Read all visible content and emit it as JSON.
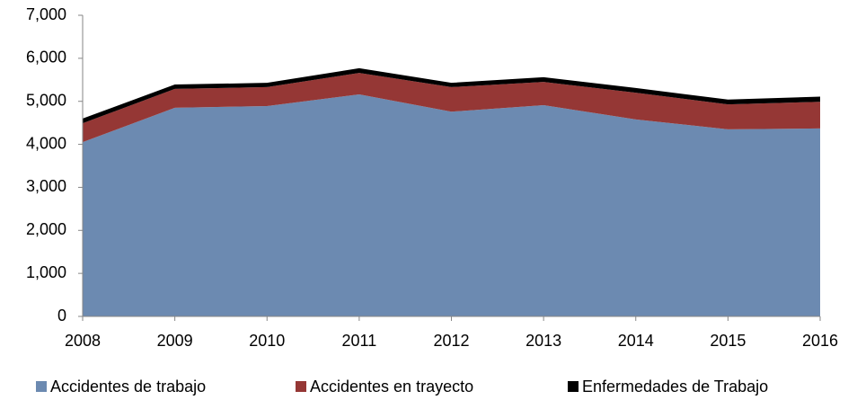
{
  "chart_data": {
    "type": "stacked_area",
    "categories": [
      "2008",
      "2009",
      "2010",
      "2011",
      "2012",
      "2013",
      "2014",
      "2015",
      "2016"
    ],
    "series": [
      {
        "name": "Accidentes de trabajo",
        "color": "#6c8ab1",
        "values": [
          4050,
          4850,
          4890,
          5160,
          4760,
          4910,
          4580,
          4350,
          4370
        ]
      },
      {
        "name": "Accidentes en trayecto",
        "color": "#953735",
        "values": [
          440,
          440,
          440,
          500,
          570,
          540,
          620,
          580,
          620
        ]
      },
      {
        "name": "Enfermedades de Trabajo",
        "color": "#000000",
        "values": [
          110,
          100,
          100,
          110,
          100,
          110,
          110,
          110,
          120
        ]
      }
    ],
    "ylim": [
      0,
      7000
    ],
    "yticks": [
      0,
      {
        "value": 1000,
        "label": "1,000"
      },
      {
        "value": 2000,
        "label": "2,000"
      },
      {
        "value": 3000,
        "label": "3,000"
      },
      {
        "value": 4000,
        "label": "4,000"
      },
      {
        "value": 5000,
        "label": "5,000"
      },
      {
        "value": 6000,
        "label": "6,000"
      },
      {
        "value": 7000,
        "label": "7,000"
      }
    ],
    "legend": "bottom"
  }
}
